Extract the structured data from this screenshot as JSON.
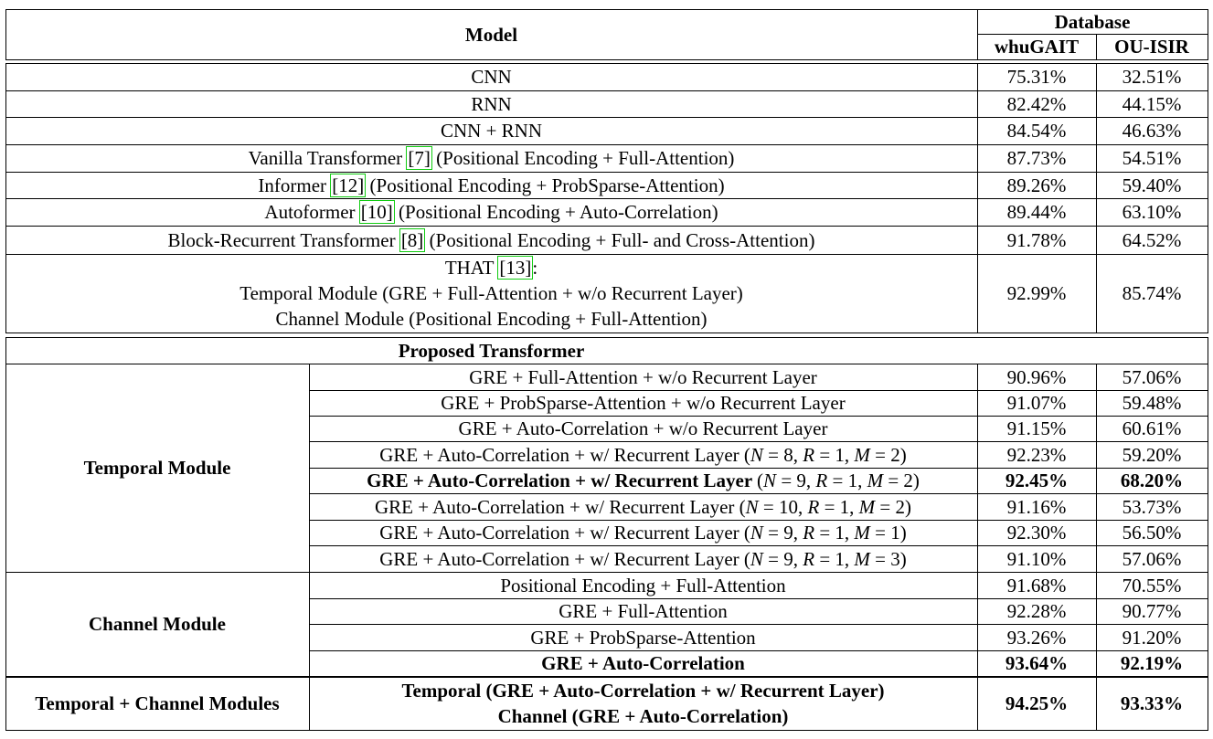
{
  "header": {
    "model": "Model",
    "database": "Database",
    "whugait": "whuGAIT",
    "ouisir": "OU-ISIR"
  },
  "baselines": [
    {
      "pre": "CNN",
      "ref": "",
      "post": "",
      "whu": "75.31%",
      "ou": "32.51%"
    },
    {
      "pre": "RNN",
      "ref": "",
      "post": "",
      "whu": "82.42%",
      "ou": "44.15%"
    },
    {
      "pre": "CNN + RNN",
      "ref": "",
      "post": "",
      "whu": "84.54%",
      "ou": "46.63%"
    },
    {
      "pre": "Vanilla Transformer ",
      "ref": "[7]",
      "post": " (Positional Encoding + Full-Attention)",
      "whu": "87.73%",
      "ou": "54.51%"
    },
    {
      "pre": "Informer ",
      "ref": "[12]",
      "post": " (Positional Encoding + ProbSparse-Attention)",
      "whu": "89.26%",
      "ou": "59.40%"
    },
    {
      "pre": "Autoformer ",
      "ref": "[10]",
      "post": " (Positional Encoding + Auto-Correlation)",
      "whu": "89.44%",
      "ou": "63.10%"
    },
    {
      "pre": "Block-Recurrent Transformer ",
      "ref": "[8]",
      "post": " (Positional Encoding + Full- and Cross-Attention)",
      "whu": "91.78%",
      "ou": "64.52%"
    }
  ],
  "that": {
    "pre": "THAT ",
    "ref": "[13]",
    "post": ":",
    "line2": "Temporal Module (GRE + Full-Attention + w/o Recurrent Layer)",
    "line3": "Channel Module (Positional Encoding + Full-Attention)",
    "whu": "92.99%",
    "ou": "85.74%"
  },
  "proposed_title": "Proposed Transformer",
  "temporal_module": {
    "label": "Temporal Module",
    "rows": [
      {
        "text": "GRE + Full-Attention + w/o Recurrent Layer",
        "params": "",
        "whu": "90.96%",
        "ou": "57.06%",
        "bold": false
      },
      {
        "text": "GRE + ProbSparse-Attention + w/o Recurrent Layer",
        "params": "",
        "whu": "91.07%",
        "ou": "59.48%",
        "bold": false
      },
      {
        "text": "GRE + Auto-Correlation + w/o Recurrent Layer",
        "params": "",
        "whu": "91.15%",
        "ou": "60.61%",
        "bold": false
      },
      {
        "text": "GRE + Auto-Correlation + w/ Recurrent Layer ",
        "params": {
          "n": "8",
          "r": "1",
          "m": "2"
        },
        "whu": "92.23%",
        "ou": "59.20%",
        "bold": false
      },
      {
        "text": "GRE + Auto-Correlation + w/ Recurrent Layer ",
        "params": {
          "n": "9",
          "r": "1",
          "m": "2"
        },
        "whu": "92.45%",
        "ou": "68.20%",
        "bold": true
      },
      {
        "text": "GRE + Auto-Correlation + w/ Recurrent Layer ",
        "params": {
          "n": "10",
          "r": "1",
          "m": "2"
        },
        "whu": "91.16%",
        "ou": "53.73%",
        "bold": false
      },
      {
        "text": "GRE + Auto-Correlation + w/ Recurrent Layer ",
        "params": {
          "n": "9",
          "r": "1",
          "m": "1"
        },
        "whu": "92.30%",
        "ou": "56.50%",
        "bold": false
      },
      {
        "text": "GRE + Auto-Correlation + w/ Recurrent Layer ",
        "params": {
          "n": "9",
          "r": "1",
          "m": "3"
        },
        "whu": "91.10%",
        "ou": "57.06%",
        "bold": false
      }
    ]
  },
  "channel_module": {
    "label": "Channel Module",
    "rows": [
      {
        "text": "Positional Encoding + Full-Attention",
        "whu": "91.68%",
        "ou": "70.55%",
        "bold": false
      },
      {
        "text": "GRE + Full-Attention",
        "whu": "92.28%",
        "ou": "90.77%",
        "bold": false
      },
      {
        "text": "GRE + ProbSparse-Attention",
        "whu": "93.26%",
        "ou": "91.20%",
        "bold": false
      },
      {
        "text": "GRE + Auto-Correlation",
        "whu": "93.64%",
        "ou": "92.19%",
        "bold": true
      }
    ]
  },
  "combined": {
    "label": "Temporal + Channel Modules",
    "line1": "Temporal (GRE + Auto-Correlation + w/ Recurrent Layer)",
    "line2": "Channel (GRE + Auto-Correlation)",
    "whu": "94.25%",
    "ou": "93.33%"
  }
}
